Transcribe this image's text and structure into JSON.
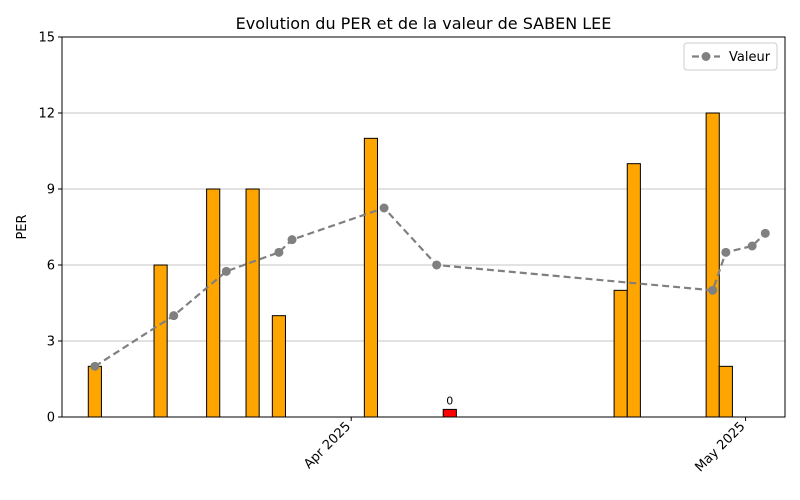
{
  "chart_data": {
    "type": "bar",
    "title": "Evolution du PER et de la valeur de SABEN LEE",
    "ylabel": "PER",
    "xlabel": "",
    "ylim": [
      0,
      15
    ],
    "yticks": [
      0,
      3,
      6,
      9,
      12,
      15
    ],
    "grid": "horizontal",
    "legend_position": "top-right",
    "x_tick_labels": [
      {
        "date": "2025-04-01",
        "label": "Apr 2025"
      },
      {
        "date": "2025-05-01",
        "label": "May 2025"
      }
    ],
    "x_range": [
      "2025-03-10",
      "2025-05-04"
    ],
    "bars": [
      {
        "date": "2025-03-12",
        "per": 2,
        "color": "#FFA500"
      },
      {
        "date": "2025-03-17",
        "per": 6,
        "color": "#FFA500"
      },
      {
        "date": "2025-03-21",
        "per": 9,
        "color": "#FFA500"
      },
      {
        "date": "2025-03-24",
        "per": 9,
        "color": "#FFA500"
      },
      {
        "date": "2025-03-26",
        "per": 4,
        "color": "#FFA500"
      },
      {
        "date": "2025-04-02",
        "per": 11,
        "color": "#FFA500"
      },
      {
        "date": "2025-04-08",
        "per": 0.3,
        "color": "#FF0000",
        "label": "0"
      },
      {
        "date": "2025-04-21",
        "per": 5,
        "color": "#FFA500"
      },
      {
        "date": "2025-04-22",
        "per": 10,
        "color": "#FFA500"
      },
      {
        "date": "2025-04-28",
        "per": 12,
        "color": "#FFA500"
      },
      {
        "date": "2025-04-29",
        "per": 2,
        "color": "#FFA500"
      }
    ],
    "series": [
      {
        "name": "Valeur",
        "color": "#808080",
        "style": "dashed-line-with-circle-markers",
        "points": [
          {
            "date": "2025-03-12",
            "value": 2
          },
          {
            "date": "2025-03-18",
            "value": 4
          },
          {
            "date": "2025-03-22",
            "value": 5.75
          },
          {
            "date": "2025-03-26",
            "value": 6.5
          },
          {
            "date": "2025-03-27",
            "value": 7
          },
          {
            "date": "2025-04-03",
            "value": 8.25
          },
          {
            "date": "2025-04-07",
            "value": 6
          },
          {
            "date": "2025-04-28",
            "value": 5
          },
          {
            "date": "2025-04-29",
            "value": 6.5
          },
          {
            "date": "2025-05-01",
            "value": 6.75
          },
          {
            "date": "2025-05-02",
            "value": 7.25
          }
        ]
      }
    ]
  }
}
